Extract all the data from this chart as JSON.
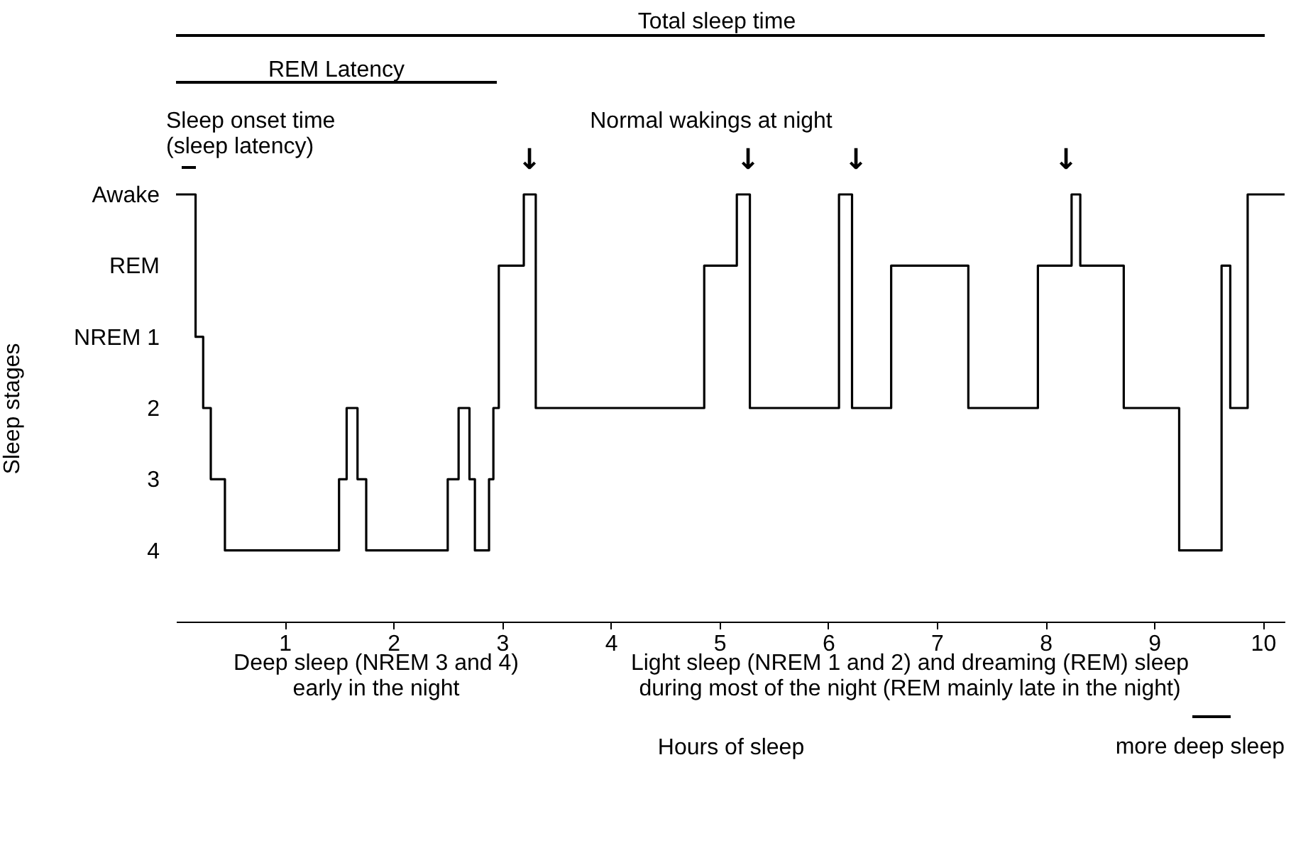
{
  "chart_data": {
    "type": "step",
    "xlabel": "Hours of sleep",
    "ylabel": "Sleep stages",
    "x": [
      0,
      0.18,
      0.25,
      0.32,
      0.45,
      1.5,
      1.57,
      1.67,
      1.75,
      2.5,
      2.6,
      2.7,
      2.75,
      2.88,
      2.92,
      2.97,
      3.2,
      3.31,
      4.86,
      5.16,
      5.28,
      6.1,
      6.22,
      6.58,
      7.29,
      7.93,
      8.24,
      8.32,
      8.72,
      9.23,
      9.62,
      9.7,
      9.86,
      10.2
    ],
    "series": [
      {
        "color": "#000000",
        "values": [
          -1,
          1,
          2,
          3,
          4,
          3,
          2,
          3,
          4,
          3,
          2,
          3,
          4,
          3,
          2,
          0,
          -1,
          2,
          0,
          -1,
          2,
          -1,
          2,
          0,
          2,
          0,
          -1,
          0,
          2,
          4,
          0,
          2,
          -1,
          -1
        ]
      }
    ],
    "xlim": [
      0,
      10.2
    ],
    "xticks": [
      1,
      2,
      3,
      4,
      5,
      6,
      7,
      8,
      9,
      10
    ],
    "ylim": [
      5,
      -1
    ],
    "yticks": [
      {
        "value": -1,
        "label": "Awake"
      },
      {
        "value": 0,
        "label": "REM"
      },
      {
        "value": 1,
        "label": "NREM 1"
      },
      2,
      3,
      4
    ],
    "grid": false,
    "marker": "none",
    "line_style": "solid",
    "annotations": [
      "Total sleep time",
      "REM Latency",
      "Sleep onset time\n(sleep latency)",
      "Normal wakings at night",
      "↓",
      "↓",
      "↓",
      "↓",
      "Deep sleep (NREM 3 and 4)\nearly in the night",
      "Light sleep (NREM 1 and 2) and dreaming (REM) sleep\nduring most of the night (REM mainly late in the night)",
      "more deep sleep"
    ]
  }
}
